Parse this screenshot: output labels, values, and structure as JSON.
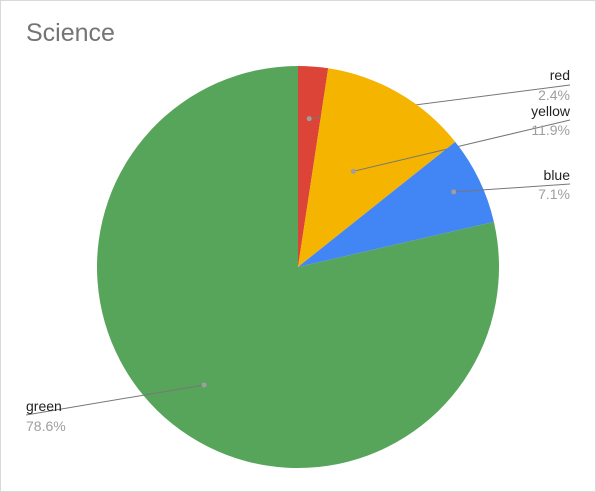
{
  "chart_data": {
    "type": "pie",
    "title": "Science",
    "legend": "labels",
    "slices": [
      {
        "label": "red",
        "percent_label": "2.4%",
        "value": 2.4,
        "color": "#DB4437"
      },
      {
        "label": "yellow",
        "percent_label": "11.9%",
        "value": 11.9,
        "color": "#F4B400"
      },
      {
        "label": "blue",
        "percent_label": "7.1%",
        "value": 7.1,
        "color": "#4285F4"
      },
      {
        "label": "green",
        "percent_label": "78.6%",
        "value": 78.6,
        "color": "#57A55A"
      }
    ]
  }
}
